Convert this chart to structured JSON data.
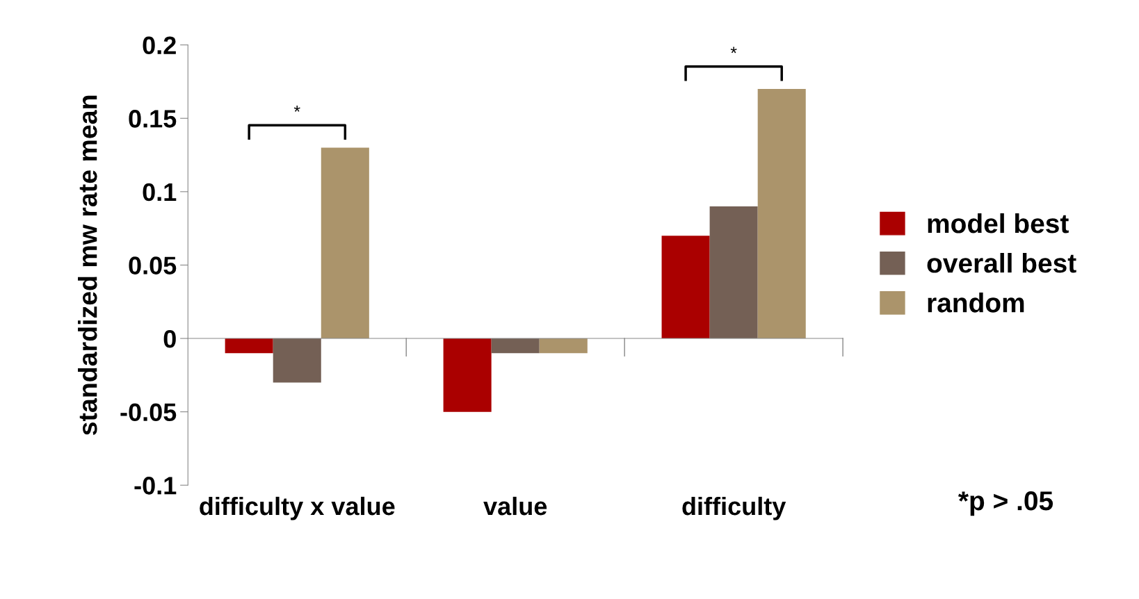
{
  "chart_data": {
    "type": "bar",
    "ylabel": "standardized mw rate mean",
    "categories": [
      "difficulty x value",
      "value",
      "difficulty"
    ],
    "series": [
      {
        "name": "model best",
        "color": "#aa0000",
        "values": [
          -0.01,
          -0.05,
          0.07
        ]
      },
      {
        "name": "overall best",
        "color": "#746055",
        "values": [
          -0.03,
          -0.01,
          0.09
        ]
      },
      {
        "name": "random",
        "color": "#ab946b",
        "values": [
          0.13,
          -0.01,
          0.17
        ]
      }
    ],
    "ylim": [
      -0.1,
      0.2
    ],
    "yticks": [
      -0.1,
      -0.05,
      0,
      0.05,
      0.1,
      0.15,
      0.2
    ],
    "legend": "right",
    "annotations": [
      "*",
      "*",
      "*p > .05"
    ]
  }
}
